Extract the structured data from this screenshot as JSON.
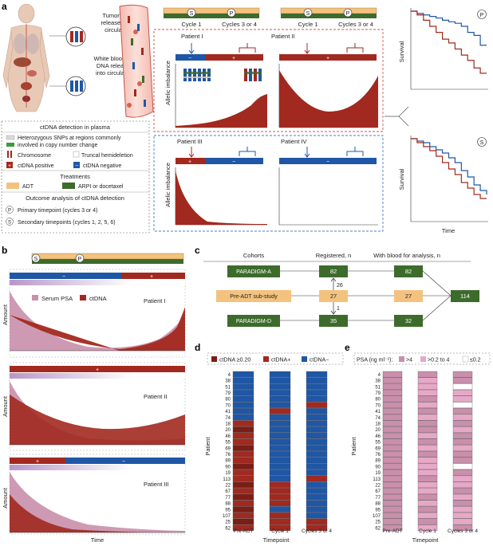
{
  "colors": {
    "red": "#a2291f",
    "blue": "#1f57a6",
    "orange": "#f4c27f",
    "green": "#3d6b2c",
    "psa": "#c98fab",
    "pink": "#e7a8c8",
    "lightpink": "#f8e3ee",
    "purple_grad": "#b896c8",
    "dashed_red": "#d9534f",
    "dashed_blue": "#4a7ec0",
    "gray_text": "#222222"
  },
  "panel_a": {
    "letter": "a",
    "tumor_label": [
      "Tumor DNA",
      "released into",
      "circulation"
    ],
    "wbc_label": [
      "White blood cell",
      "DNA released",
      "into circulation"
    ],
    "timepoints": {
      "cycle1": "Cycle 1",
      "cycles34": "Cycles 3 or 4",
      "s": "S",
      "p": "P"
    },
    "patients": [
      "Patient I",
      "Patient II",
      "Patient III",
      "Patient IV"
    ],
    "yaxis": "Allelic imbalance",
    "survival": "Survival",
    "time": "Time",
    "legend": {
      "title": "ctDNA detection in plasma",
      "snp": [
        "Heterozygous SNPs at regions commonly",
        "involved in copy number change"
      ],
      "chromosome": "Chromosome",
      "truncal": "Truncal hemideletion",
      "pos": "ctDNA positive",
      "neg": "ctDNA negative",
      "treat_title": "Treatments",
      "adt": "ADT",
      "arpi": "ARPI or docetaxel",
      "outcome_title": "Outcome analysis of ctDNA detection",
      "primary": "Primary timepoint (cycles 3 or 4)",
      "secondary": "Secondary timepoints (cycles 1, 2, 5, 6)"
    }
  },
  "panel_b": {
    "letter": "b",
    "amount": "Amount",
    "time": "Time",
    "serum_psa": "Serum PSA",
    "ctdna": "ctDNA",
    "patients": [
      "Patient I",
      "Patient II",
      "Patient III"
    ]
  },
  "panel_c": {
    "letter": "c",
    "headers": {
      "cohorts": "Cohorts",
      "registered": "Registered, n",
      "blood": "With blood for analysis, n"
    },
    "paradigm_a": {
      "name": "PARADIGM-A",
      "registered": "82",
      "blood": "82"
    },
    "pre_adt": {
      "name": "Pre-ADT sub-study",
      "registered": "27",
      "blood": "27"
    },
    "paradigm_d": {
      "name": "PARADIGM-D",
      "registered": "35",
      "blood": "32"
    },
    "arrow_up": "26",
    "arrow_down": "1",
    "total": "114"
  },
  "panel_d": {
    "letter": "d",
    "legend": [
      "ctDNA ≥0.20",
      "ctDNA+",
      "ctDNA−"
    ],
    "ylabel": "Patient",
    "xlabel": "Timepoint",
    "columns": [
      "Pre-ADT",
      "Cycle 1",
      "Cycles 3 or 4"
    ],
    "patients": [
      "4",
      "38",
      "51",
      "79",
      "80",
      "70",
      "41",
      "74",
      "18",
      "20",
      "46",
      "55",
      "69",
      "76",
      "89",
      "90",
      "19",
      "113",
      "22",
      "67",
      "77",
      "88",
      "95",
      "107",
      "25",
      "62"
    ],
    "status": [
      [
        "n",
        "n",
        "n"
      ],
      [
        "n",
        "n",
        "n"
      ],
      [
        "n",
        "n",
        "n"
      ],
      [
        "n",
        "n",
        "n"
      ],
      [
        "n",
        "n",
        "n"
      ],
      [
        "n",
        "n",
        "p"
      ],
      [
        "n",
        "p",
        "n"
      ],
      [
        "n",
        "n",
        "n"
      ],
      [
        "p",
        "n",
        "n"
      ],
      [
        "h",
        "n",
        "n"
      ],
      [
        "p",
        "n",
        "n"
      ],
      [
        "p",
        "n",
        "n"
      ],
      [
        "h",
        "n",
        "n"
      ],
      [
        "p",
        "n",
        "n"
      ],
      [
        "p",
        "n",
        "n"
      ],
      [
        "h",
        "n",
        "n"
      ],
      [
        "p",
        "n",
        "n"
      ],
      [
        "p",
        "n",
        "p"
      ],
      [
        "h",
        "p",
        "n"
      ],
      [
        "p",
        "p",
        "n"
      ],
      [
        "h",
        "p",
        "n"
      ],
      [
        "p",
        "p",
        "n"
      ],
      [
        "h",
        "n",
        "n"
      ],
      [
        "p",
        "p",
        "n"
      ],
      [
        "h",
        "p",
        "p"
      ],
      [
        "p",
        "p",
        "p"
      ]
    ]
  },
  "panel_e": {
    "letter": "e",
    "legend_title": "PSA (ng ml⁻¹):",
    "legend": [
      ">4",
      ">0.2 to 4",
      "≤0.2"
    ],
    "ylabel": "Patient",
    "xlabel": "Timepoint",
    "columns": [
      "Pre-ADT",
      "Cycle 1",
      "Cycles 3 or 4"
    ],
    "patients": [
      "4",
      "38",
      "51",
      "79",
      "80",
      "70",
      "41",
      "74",
      "18",
      "20",
      "46",
      "55",
      "69",
      "76",
      "89",
      "90",
      "19",
      "113",
      "22",
      "67",
      "77",
      "88",
      "95",
      "107",
      "25",
      "62"
    ],
    "levels": [
      [
        "h",
        "h",
        "h"
      ],
      [
        "h",
        "m",
        "h"
      ],
      [
        "h",
        "m",
        "l"
      ],
      [
        "h",
        "m",
        "m"
      ],
      [
        "h",
        "h",
        "m"
      ],
      [
        "h",
        "m",
        "l"
      ],
      [
        "h",
        "h",
        "h"
      ],
      [
        "h",
        "m",
        "m"
      ],
      [
        "h",
        "h",
        "h"
      ],
      [
        "h",
        "h",
        "m"
      ],
      [
        "h",
        "m",
        "h"
      ],
      [
        "h",
        "h",
        "h"
      ],
      [
        "h",
        "m",
        "m"
      ],
      [
        "h",
        "h",
        "h"
      ],
      [
        "h",
        "m",
        "h"
      ],
      [
        "h",
        "m",
        "l"
      ],
      [
        "h",
        "m",
        "h"
      ],
      [
        "h",
        "h",
        "m"
      ],
      [
        "h",
        "m",
        "m"
      ],
      [
        "h",
        "m",
        "h"
      ],
      [
        "h",
        "h",
        "m"
      ],
      [
        "h",
        "m",
        "h"
      ],
      [
        "h",
        "h",
        "m"
      ],
      [
        "h",
        "m",
        "m"
      ],
      [
        "h",
        "h",
        "m"
      ],
      [
        "h",
        "m",
        "h"
      ]
    ]
  },
  "survival_data": {
    "top": {
      "blue": [
        1,
        0.97,
        0.95,
        0.93,
        0.91,
        0.88,
        0.86,
        0.84,
        0.8,
        0.72,
        0.68,
        0.55,
        0.55
      ],
      "red": [
        1,
        0.95,
        0.88,
        0.8,
        0.72,
        0.63,
        0.58,
        0.5,
        0.42,
        0.35,
        0.25,
        0.18,
        0.18
      ]
    },
    "bottom": {
      "blue": [
        1,
        0.97,
        0.95,
        0.9,
        0.86,
        0.82,
        0.76,
        0.7,
        0.6,
        0.52,
        0.42,
        0.35,
        0.3
      ],
      "red": [
        1,
        0.95,
        0.9,
        0.85,
        0.78,
        0.7,
        0.62,
        0.55,
        0.45,
        0.38,
        0.3,
        0.25,
        0.25
      ]
    }
  }
}
